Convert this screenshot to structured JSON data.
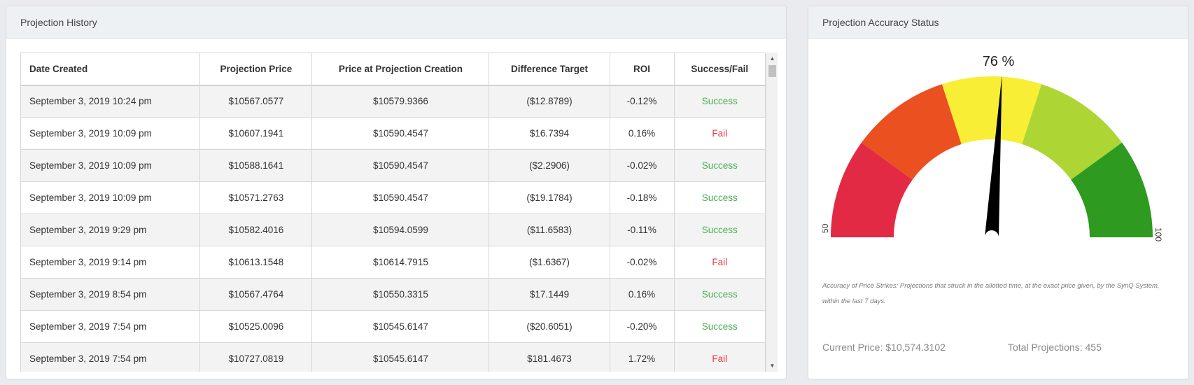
{
  "history": {
    "title": "Projection History",
    "columns": [
      "Date Created",
      "Projection Price",
      "Price at Projection Creation",
      "Difference Target",
      "ROI",
      "Success/Fail"
    ],
    "rows": [
      [
        "September 3, 2019 10:24 pm",
        "$10567.0577",
        "$10579.9366",
        "($12.8789)",
        "-0.12%",
        "Success"
      ],
      [
        "September 3, 2019 10:09 pm",
        "$10607.1941",
        "$10590.4547",
        "$16.7394",
        "0.16%",
        "Fail"
      ],
      [
        "September 3, 2019 10:09 pm",
        "$10588.1641",
        "$10590.4547",
        "($2.2906)",
        "-0.02%",
        "Success"
      ],
      [
        "September 3, 2019 10:09 pm",
        "$10571.2763",
        "$10590.4547",
        "($19.1784)",
        "-0.18%",
        "Success"
      ],
      [
        "September 3, 2019 9:29 pm",
        "$10582.4016",
        "$10594.0599",
        "($11.6583)",
        "-0.11%",
        "Success"
      ],
      [
        "September 3, 2019 9:14 pm",
        "$10613.1548",
        "$10614.7915",
        "($1.6367)",
        "-0.02%",
        "Fail"
      ],
      [
        "September 3, 2019 8:54 pm",
        "$10567.4764",
        "$10550.3315",
        "$17.1449",
        "0.16%",
        "Success"
      ],
      [
        "September 3, 2019 7:54 pm",
        "$10525.0096",
        "$10545.6147",
        "($20.6051)",
        "-0.20%",
        "Success"
      ],
      [
        "September 3, 2019 7:54 pm",
        "$10727.0819",
        "$10545.6147",
        "$181.4673",
        "1.72%",
        "Fail"
      ]
    ],
    "status_colors": {
      "Success": "#4caf50",
      "Fail": "#e53945"
    }
  },
  "accuracy": {
    "title": "Projection Accuracy Status",
    "percent_label": "76 %",
    "value": 76,
    "min_label": "50",
    "max_label": "100",
    "band_colors": [
      "#e32a45",
      "#eb5020",
      "#f8ee35",
      "#add635",
      "#2e9a20"
    ],
    "needle_color": "#000000",
    "note": "Accuracy of Price Strikes: Projections that struck in the allotted time, at the exact price given, by the SynQ System, within the last 7 days.",
    "current_price": "Current Price: $10,574.3102",
    "total_projections": "Total Projections: 455"
  }
}
